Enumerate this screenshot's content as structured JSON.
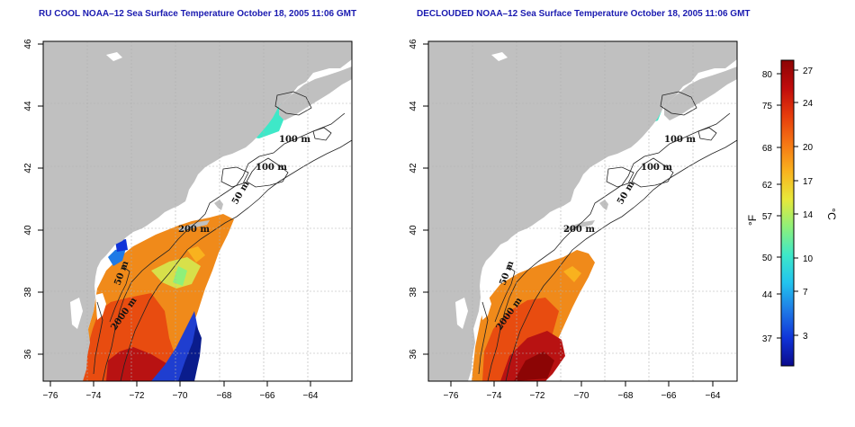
{
  "panels": [
    {
      "title": "RU COOL NOAA–12 Sea Surface Temperature October 18, 2005 11:06 GMT",
      "variant": "cool",
      "contours": [
        "100 m",
        "100 m",
        "50 m",
        "200 m",
        "50 m",
        "2000 m"
      ]
    },
    {
      "title": "DECLOUDED NOAA–12 Sea Surface Temperature October 18, 2005 11:06 GMT",
      "variant": "declouded",
      "contours": [
        "100 m",
        "100 m",
        "50 m",
        "200 m",
        "50 m",
        "2000 m"
      ]
    }
  ],
  "axes": {
    "x_ticks": [
      "−76",
      "−74",
      "−72",
      "−70",
      "−68",
      "−66",
      "−64"
    ],
    "y_ticks": [
      "36",
      "38",
      "40",
      "42",
      "44",
      "46"
    ]
  },
  "colorbar": {
    "f_label": "°F",
    "c_label": "°C",
    "f_ticks": [
      "80",
      "75",
      "68",
      "62",
      "57",
      "50",
      "44",
      "37"
    ],
    "c_ticks": [
      "27",
      "24",
      "20",
      "17",
      "14",
      "10",
      "7",
      "3"
    ],
    "colors": [
      "#0a0a8c",
      "#1034d8",
      "#1f7ae6",
      "#22c4ee",
      "#3ee8c8",
      "#8ef07a",
      "#e8e83a",
      "#f9b21e",
      "#f57614",
      "#e63c0c",
      "#c00c0c",
      "#8c0505"
    ]
  }
}
